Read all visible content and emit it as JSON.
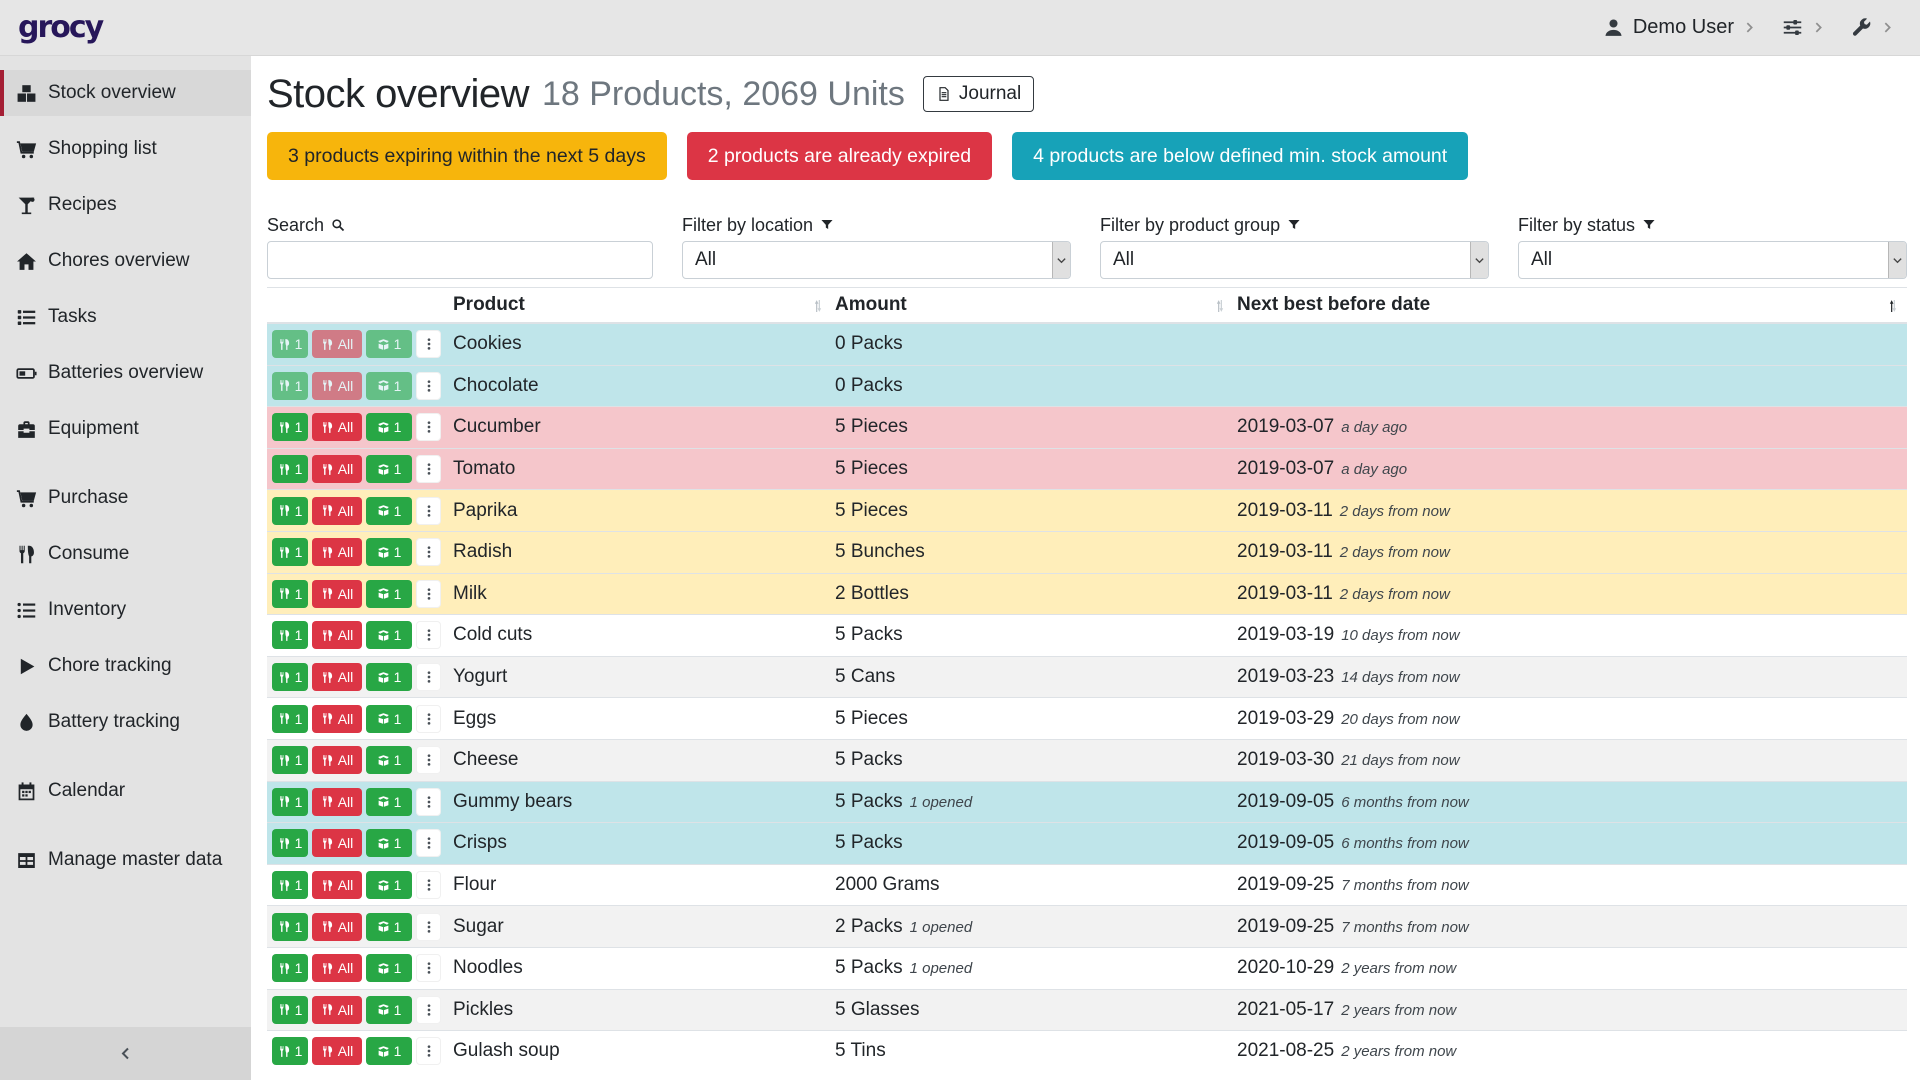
{
  "app": {
    "logo": "grocy"
  },
  "topbar": {
    "user_label": "Demo User"
  },
  "sidebar": {
    "items": [
      {
        "slug": "stock-overview",
        "label": "Stock overview",
        "icon": "boxes-icon",
        "active": true
      },
      {
        "slug": "shopping-list",
        "label": "Shopping list",
        "icon": "cart-icon"
      },
      {
        "slug": "recipes",
        "label": "Recipes",
        "icon": "martini-icon"
      },
      {
        "slug": "chores-overview",
        "label": "Chores overview",
        "icon": "home-icon"
      },
      {
        "slug": "tasks",
        "label": "Tasks",
        "icon": "tasks-icon"
      },
      {
        "slug": "batteries-overview",
        "label": "Batteries overview",
        "icon": "battery-icon"
      },
      {
        "slug": "equipment",
        "label": "Equipment",
        "icon": "toolbox-icon"
      },
      {
        "slug": "purchase",
        "label": "Purchase",
        "icon": "cart-icon",
        "gap": true
      },
      {
        "slug": "consume",
        "label": "Consume",
        "icon": "utensils-icon"
      },
      {
        "slug": "inventory",
        "label": "Inventory",
        "icon": "list-icon"
      },
      {
        "slug": "chore-tracking",
        "label": "Chore tracking",
        "icon": "play-icon"
      },
      {
        "slug": "battery-tracking",
        "label": "Battery tracking",
        "icon": "droplet-icon"
      },
      {
        "slug": "calendar",
        "label": "Calendar",
        "icon": "calendar-icon",
        "gap": true
      },
      {
        "slug": "manage-master-data",
        "label": "Manage master data",
        "icon": "table-icon",
        "gap": true,
        "chevron": true
      }
    ]
  },
  "header": {
    "title": "Stock overview",
    "subtitle": "18 Products, 2069 Units",
    "journal_label": "Journal"
  },
  "alerts": [
    {
      "text": "3 products expiring within the next 5 days",
      "color": "#f7b50c",
      "text_color": "#212529"
    },
    {
      "text": "2 products are already expired",
      "color": "#dc3545",
      "text_color": "#ffffff"
    },
    {
      "text": "4 products are below defined min. stock amount",
      "color": "#17a2b8",
      "text_color": "#ffffff"
    }
  ],
  "filters": {
    "search_label": "Search",
    "search_value": "",
    "location_label": "Filter by location",
    "location_value": "All",
    "product_group_label": "Filter by product group",
    "product_group_value": "All",
    "status_label": "Filter by status",
    "status_value": "All"
  },
  "table": {
    "columns": [
      {
        "label": "Product",
        "sorted": false
      },
      {
        "label": "Amount",
        "sorted": false
      },
      {
        "label": "Next best before date",
        "sorted": true
      }
    ],
    "row_actions": {
      "consume_one": "1",
      "consume_all": "All",
      "open_one": "1"
    },
    "rows": [
      {
        "product": "Cookies",
        "amount": "0 Packs",
        "amount_note": "",
        "date": "",
        "date_note": "",
        "state": "info",
        "disabled": true
      },
      {
        "product": "Chocolate",
        "amount": "0 Packs",
        "amount_note": "",
        "date": "",
        "date_note": "",
        "state": "info",
        "disabled": true
      },
      {
        "product": "Cucumber",
        "amount": "5 Pieces",
        "amount_note": "",
        "date": "2019-03-07",
        "date_note": "a day ago",
        "state": "danger",
        "disabled": false
      },
      {
        "product": "Tomato",
        "amount": "5 Pieces",
        "amount_note": "",
        "date": "2019-03-07",
        "date_note": "a day ago",
        "state": "danger",
        "disabled": false
      },
      {
        "product": "Paprika",
        "amount": "5 Pieces",
        "amount_note": "",
        "date": "2019-03-11",
        "date_note": "2 days from now",
        "state": "warning",
        "disabled": false
      },
      {
        "product": "Radish",
        "amount": "5 Bunches",
        "amount_note": "",
        "date": "2019-03-11",
        "date_note": "2 days from now",
        "state": "warning",
        "disabled": false
      },
      {
        "product": "Milk",
        "amount": "2 Bottles",
        "amount_note": "",
        "date": "2019-03-11",
        "date_note": "2 days from now",
        "state": "warning",
        "disabled": false
      },
      {
        "product": "Cold cuts",
        "amount": "5 Packs",
        "amount_note": "",
        "date": "2019-03-19",
        "date_note": "10 days from now",
        "state": "",
        "disabled": false
      },
      {
        "product": "Yogurt",
        "amount": "5 Cans",
        "amount_note": "",
        "date": "2019-03-23",
        "date_note": "14 days from now",
        "state": "stripe",
        "disabled": false
      },
      {
        "product": "Eggs",
        "amount": "5 Pieces",
        "amount_note": "",
        "date": "2019-03-29",
        "date_note": "20 days from now",
        "state": "",
        "disabled": false
      },
      {
        "product": "Cheese",
        "amount": "5 Packs",
        "amount_note": "",
        "date": "2019-03-30",
        "date_note": "21 days from now",
        "state": "stripe",
        "disabled": false
      },
      {
        "product": "Gummy bears",
        "amount": "5 Packs",
        "amount_note": "1 opened",
        "date": "2019-09-05",
        "date_note": "6 months from now",
        "state": "info",
        "disabled": false
      },
      {
        "product": "Crisps",
        "amount": "5 Packs",
        "amount_note": "",
        "date": "2019-09-05",
        "date_note": "6 months from now",
        "state": "info",
        "disabled": false
      },
      {
        "product": "Flour",
        "amount": "2000 Grams",
        "amount_note": "",
        "date": "2019-09-25",
        "date_note": "7 months from now",
        "state": "",
        "disabled": false
      },
      {
        "product": "Sugar",
        "amount": "2 Packs",
        "amount_note": "1 opened",
        "date": "2019-09-25",
        "date_note": "7 months from now",
        "state": "stripe",
        "disabled": false
      },
      {
        "product": "Noodles",
        "amount": "5 Packs",
        "amount_note": "1 opened",
        "date": "2020-10-29",
        "date_note": "2 years from now",
        "state": "",
        "disabled": false
      },
      {
        "product": "Pickles",
        "amount": "5 Glasses",
        "amount_note": "",
        "date": "2021-05-17",
        "date_note": "2 years from now",
        "state": "stripe",
        "disabled": false
      },
      {
        "product": "Gulash soup",
        "amount": "5 Tins",
        "amount_note": "",
        "date": "2021-08-25",
        "date_note": "2 years from now",
        "state": "",
        "disabled": false
      }
    ]
  }
}
